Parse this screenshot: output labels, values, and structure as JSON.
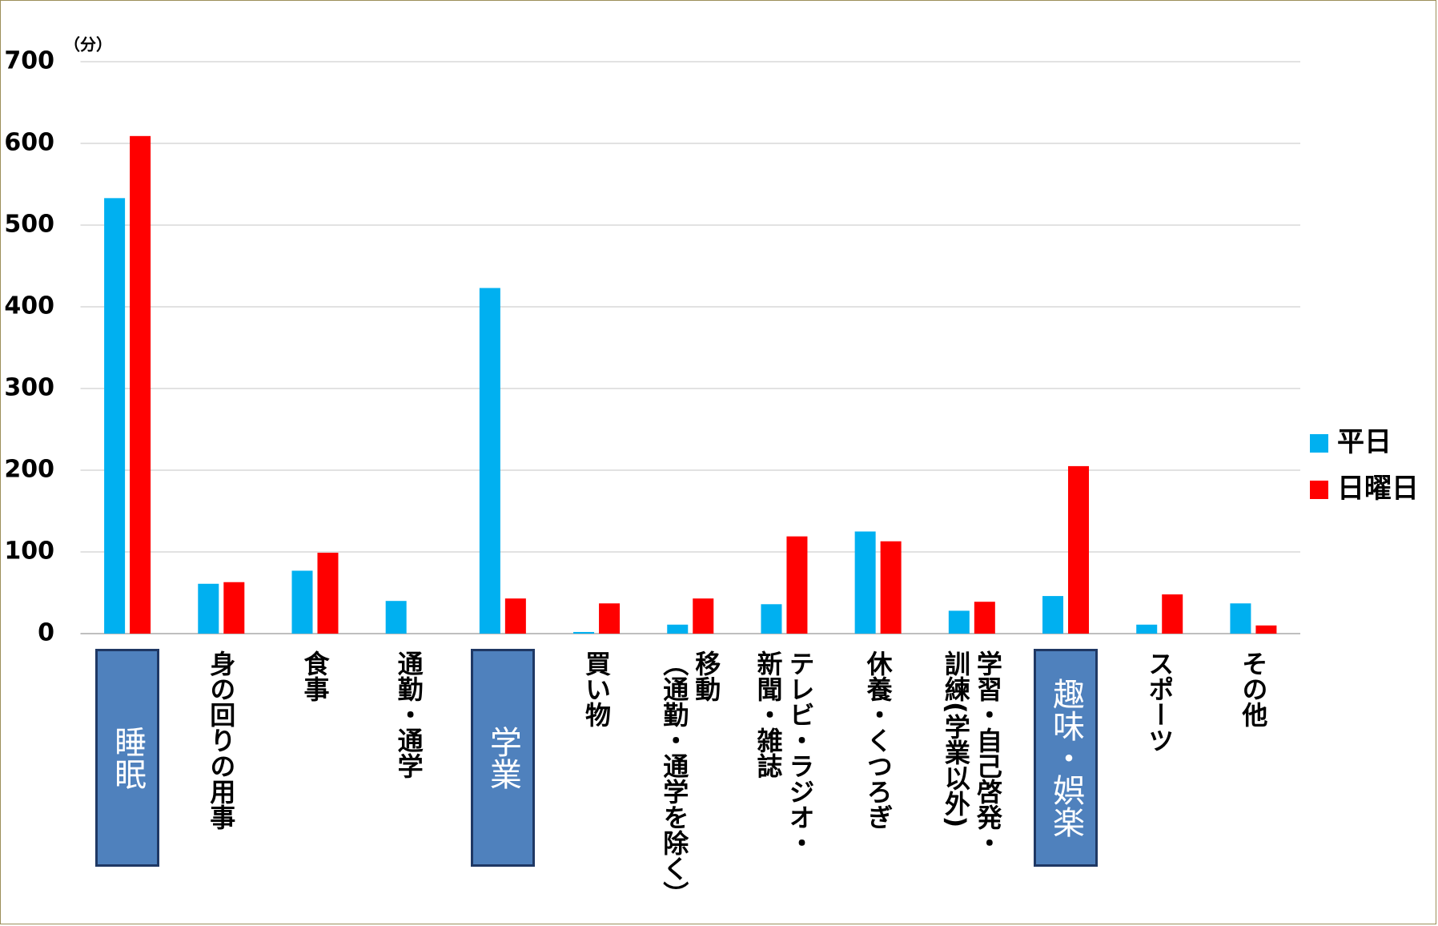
{
  "chart_data": {
    "type": "bar",
    "unit_label": "（分）",
    "categories": [
      "睡眠",
      "身の回りの用事",
      "食事",
      "通勤・通学",
      "学業",
      "買い物",
      "移動\n（通勤・通学を除く）",
      "テレビ・ラジオ・\n新聞・雑誌",
      "休養・くつろぎ",
      "学習・自己啓発・\n訓練(学業以外)",
      "趣味・娯楽",
      "スポーツ",
      "その他"
    ],
    "series": [
      {
        "name": "平日",
        "color": "#00b0f0",
        "values": [
          533,
          61,
          77,
          40,
          423,
          2,
          11,
          36,
          125,
          28,
          46,
          11,
          37
        ]
      },
      {
        "name": "日曜日",
        "color": "#ff0000",
        "values": [
          609,
          63,
          99,
          0,
          43,
          37,
          43,
          119,
          113,
          39,
          205,
          48,
          10
        ]
      }
    ],
    "highlighted": [
      0,
      4,
      10
    ],
    "ylim": [
      0,
      700
    ],
    "yticks": [
      0,
      100,
      200,
      300,
      400,
      500,
      600,
      700
    ],
    "grid": true,
    "legend": "right"
  }
}
